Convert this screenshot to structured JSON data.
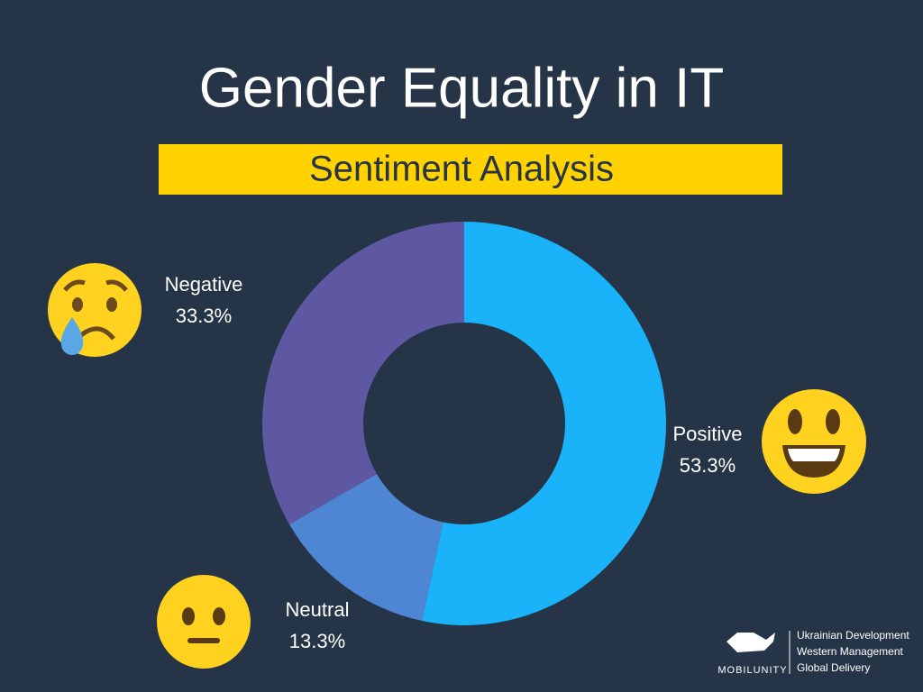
{
  "chart_data": {
    "type": "donut",
    "title": "Gender Equality in IT",
    "subtitle": "Sentiment Analysis",
    "categories": [
      "Positive",
      "Neutral",
      "Negative"
    ],
    "values": [
      53.3,
      13.3,
      33.3
    ],
    "value_labels": [
      "53.3%",
      "13.3%",
      "33.3%"
    ],
    "colors": [
      "#1ab2f8",
      "#4f86d4",
      "#5e58a3"
    ]
  },
  "branding": {
    "name": "MOBILUNITY",
    "lines": [
      "Ukrainian Development",
      "Western Management",
      "Global Delivery"
    ]
  }
}
